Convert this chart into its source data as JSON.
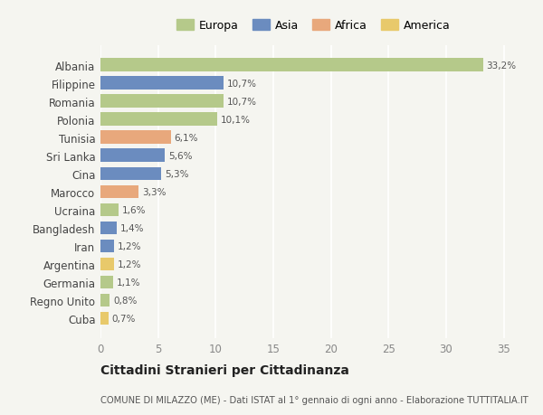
{
  "categories": [
    "Albania",
    "Filippine",
    "Romania",
    "Polonia",
    "Tunisia",
    "Sri Lanka",
    "Cina",
    "Marocco",
    "Ucraina",
    "Bangladesh",
    "Iran",
    "Argentina",
    "Germania",
    "Regno Unito",
    "Cuba"
  ],
  "values": [
    33.2,
    10.7,
    10.7,
    10.1,
    6.1,
    5.6,
    5.3,
    3.3,
    1.6,
    1.4,
    1.2,
    1.2,
    1.1,
    0.8,
    0.7
  ],
  "labels": [
    "33,2%",
    "10,7%",
    "10,7%",
    "10,1%",
    "6,1%",
    "5,6%",
    "5,3%",
    "3,3%",
    "1,6%",
    "1,4%",
    "1,2%",
    "1,2%",
    "1,1%",
    "0,8%",
    "0,7%"
  ],
  "colors": [
    "#b5c98a",
    "#6b8cbf",
    "#b5c98a",
    "#b5c98a",
    "#e8a87c",
    "#6b8cbf",
    "#6b8cbf",
    "#e8a87c",
    "#b5c98a",
    "#6b8cbf",
    "#6b8cbf",
    "#e8c96b",
    "#b5c98a",
    "#b5c98a",
    "#e8c96b"
  ],
  "legend": [
    {
      "label": "Europa",
      "color": "#b5c98a"
    },
    {
      "label": "Asia",
      "color": "#6b8cbf"
    },
    {
      "label": "Africa",
      "color": "#e8a87c"
    },
    {
      "label": "America",
      "color": "#e8c96b"
    }
  ],
  "title": "Cittadini Stranieri per Cittadinanza",
  "subtitle": "COMUNE DI MILAZZO (ME) - Dati ISTAT al 1° gennaio di ogni anno - Elaborazione TUTTITALIA.IT",
  "xlim": [
    0,
    37
  ],
  "xticks": [
    0,
    5,
    10,
    15,
    20,
    25,
    30,
    35
  ],
  "background_color": "#f5f5f0",
  "grid_color": "#ffffff",
  "bar_height": 0.72,
  "figsize": [
    6.0,
    4.6
  ],
  "dpi": 100
}
